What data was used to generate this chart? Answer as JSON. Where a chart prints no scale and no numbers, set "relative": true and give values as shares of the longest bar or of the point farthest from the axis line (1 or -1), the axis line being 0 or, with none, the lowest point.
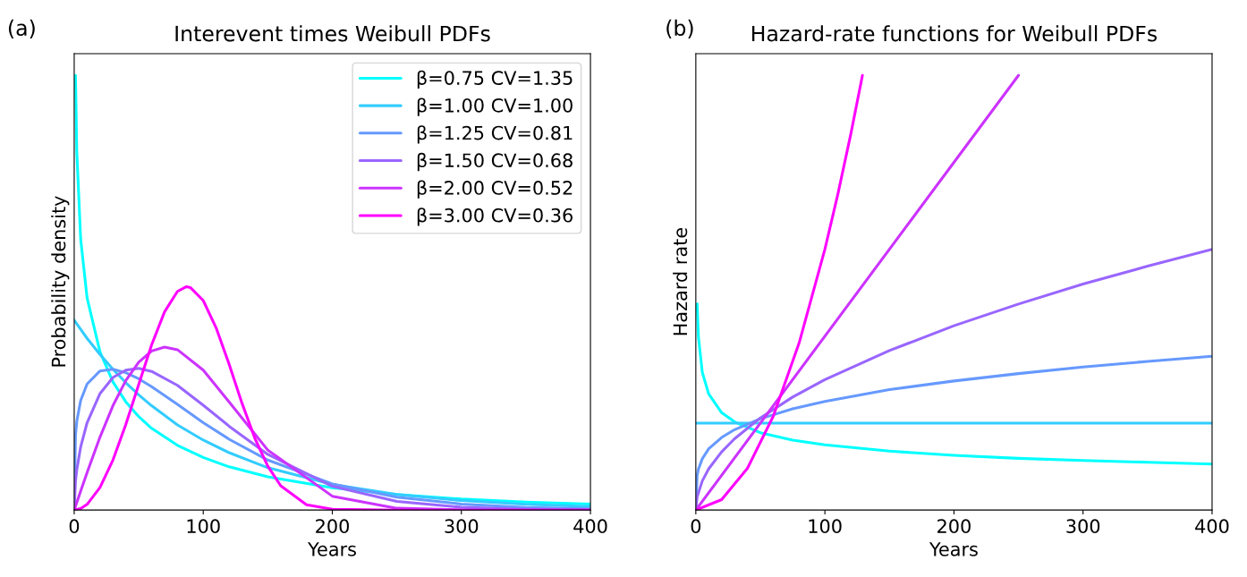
{
  "chart_data": [
    {
      "type": "line",
      "title": "Interevent times Weibull PDFs",
      "xlabel": "Years",
      "ylabel": "Probability density",
      "relative": true,
      "xlim": [
        0,
        400
      ],
      "xticks": [
        0,
        100,
        200,
        300,
        400
      ],
      "tick_labels": "x",
      "legend": "top right",
      "grid": false,
      "annotations": [
        "(a)"
      ],
      "series": [
        {
          "name": "β=0.75 CV=1.35",
          "color": "#00ffff",
          "x": [
            1,
            2,
            5,
            10,
            20,
            30,
            40,
            50,
            60,
            80,
            100,
            120,
            150,
            200,
            250,
            300,
            350,
            400
          ],
          "values": [
            1.0,
            0.826,
            0.624,
            0.488,
            0.364,
            0.295,
            0.249,
            0.215,
            0.188,
            0.149,
            0.121,
            0.0995,
            0.0765,
            0.0513,
            0.0357,
            0.0254,
            0.0185,
            0.0137
          ]
        },
        {
          "name": "β=1.00 CV=1.00",
          "color": "#33ccff",
          "x": [
            0,
            5,
            10,
            20,
            30,
            40,
            50,
            60,
            80,
            100,
            120,
            150,
            200,
            250,
            300,
            350,
            400
          ],
          "values": [
            0.437,
            0.416,
            0.395,
            0.358,
            0.324,
            0.293,
            0.265,
            0.24,
            0.196,
            0.161,
            0.132,
            0.0975,
            0.0591,
            0.0359,
            0.0218,
            0.0132,
            0.008
          ]
        },
        {
          "name": "β=1.25 CV=0.81",
          "color": "#6699ff",
          "x": [
            0,
            1,
            2,
            5,
            10,
            20,
            30,
            40,
            50,
            60,
            80,
            100,
            120,
            150,
            200,
            250,
            300,
            350,
            400
          ],
          "values": [
            0,
            0.172,
            0.204,
            0.252,
            0.29,
            0.32,
            0.324,
            0.316,
            0.302,
            0.284,
            0.243,
            0.201,
            0.163,
            0.115,
            0.0602,
            0.0296,
            0.0139,
            0.0062,
            0.0027
          ]
        },
        {
          "name": "β=1.50 CV=0.68",
          "color": "#9966ff",
          "x": [
            0,
            1,
            2,
            5,
            10,
            20,
            30,
            40,
            50,
            60,
            80,
            100,
            120,
            150,
            200,
            250,
            300,
            350,
            400
          ],
          "values": [
            0,
            0.0655,
            0.0925,
            0.145,
            0.201,
            0.268,
            0.305,
            0.322,
            0.326,
            0.319,
            0.287,
            0.241,
            0.193,
            0.128,
            0.0548,
            0.0199,
            0.0063,
            0.0018,
            0.0004
          ]
        },
        {
          "name": "β=2.00 CV=0.52",
          "color": "#cc33ff",
          "x": [
            0,
            1,
            2,
            5,
            10,
            20,
            30,
            40,
            50,
            60,
            70,
            80,
            100,
            120,
            150,
            200,
            250,
            300,
            400
          ],
          "values": [
            0,
            0.0087,
            0.0175,
            0.0436,
            0.0865,
            0.168,
            0.24,
            0.298,
            0.34,
            0.366,
            0.375,
            0.369,
            0.322,
            0.249,
            0.138,
            0.032,
            0.0042,
            0.0003,
            0
          ]
        },
        {
          "name": "β=3.00 CV=0.36",
          "color": "#ff00ff",
          "x": [
            0,
            5,
            10,
            20,
            30,
            40,
            50,
            60,
            70,
            80,
            87,
            90,
            100,
            110,
            120,
            130,
            140,
            150,
            160,
            180,
            200,
            250,
            400
          ],
          "values": [
            0,
            0.0033,
            0.0131,
            0.052,
            0.115,
            0.197,
            0.289,
            0.38,
            0.456,
            0.503,
            0.514,
            0.512,
            0.482,
            0.419,
            0.336,
            0.246,
            0.165,
            0.101,
            0.056,
            0.0124,
            0.0018,
            0,
            0
          ]
        }
      ]
    },
    {
      "type": "line",
      "title": "Hazard-rate functions for Weibull PDFs",
      "xlabel": "Years",
      "ylabel": "Hazard rate",
      "relative": true,
      "xlim": [
        0,
        400
      ],
      "xticks": [
        0,
        100,
        200,
        300,
        400
      ],
      "tick_labels": "x",
      "legend": false,
      "grid": false,
      "annotations": [
        "(b)"
      ],
      "series": [
        {
          "color": "#00ffff",
          "x": [
            1,
            2,
            5,
            10,
            20,
            30,
            50,
            75,
            100,
            150,
            200,
            250,
            300,
            350,
            400
          ],
          "values": [
            0.474,
            0.399,
            0.317,
            0.267,
            0.224,
            0.203,
            0.178,
            0.161,
            0.15,
            0.1355,
            0.126,
            0.119,
            0.114,
            0.11,
            0.106
          ]
        },
        {
          "color": "#33ccff",
          "x": [
            0,
            400
          ],
          "values": [
            0.2,
            0.2
          ]
        },
        {
          "color": "#6699ff",
          "x": [
            0,
            1,
            2,
            5,
            10,
            20,
            30,
            50,
            75,
            100,
            150,
            200,
            250,
            300,
            350,
            400
          ],
          "values": [
            0,
            0.079,
            0.094,
            0.118,
            0.141,
            0.167,
            0.185,
            0.21,
            0.233,
            0.25,
            0.277,
            0.297,
            0.314,
            0.329,
            0.342,
            0.354
          ]
        },
        {
          "color": "#9966ff",
          "x": [
            0,
            1,
            5,
            10,
            20,
            30,
            50,
            75,
            100,
            150,
            200,
            250,
            300,
            350,
            400
          ],
          "values": [
            0,
            0.03,
            0.067,
            0.095,
            0.134,
            0.164,
            0.212,
            0.26,
            0.3,
            0.367,
            0.424,
            0.474,
            0.52,
            0.561,
            0.6
          ]
        },
        {
          "color": "#cc33ff",
          "x": [
            0,
            250
          ],
          "values": [
            0,
            1.0
          ]
        },
        {
          "color": "#ff00ff",
          "x": [
            0,
            20,
            40,
            60,
            80,
            100,
            110,
            120,
            129.1
          ],
          "values": [
            0,
            0.024,
            0.096,
            0.216,
            0.384,
            0.6,
            0.726,
            0.864,
            1.0
          ]
        }
      ]
    }
  ]
}
